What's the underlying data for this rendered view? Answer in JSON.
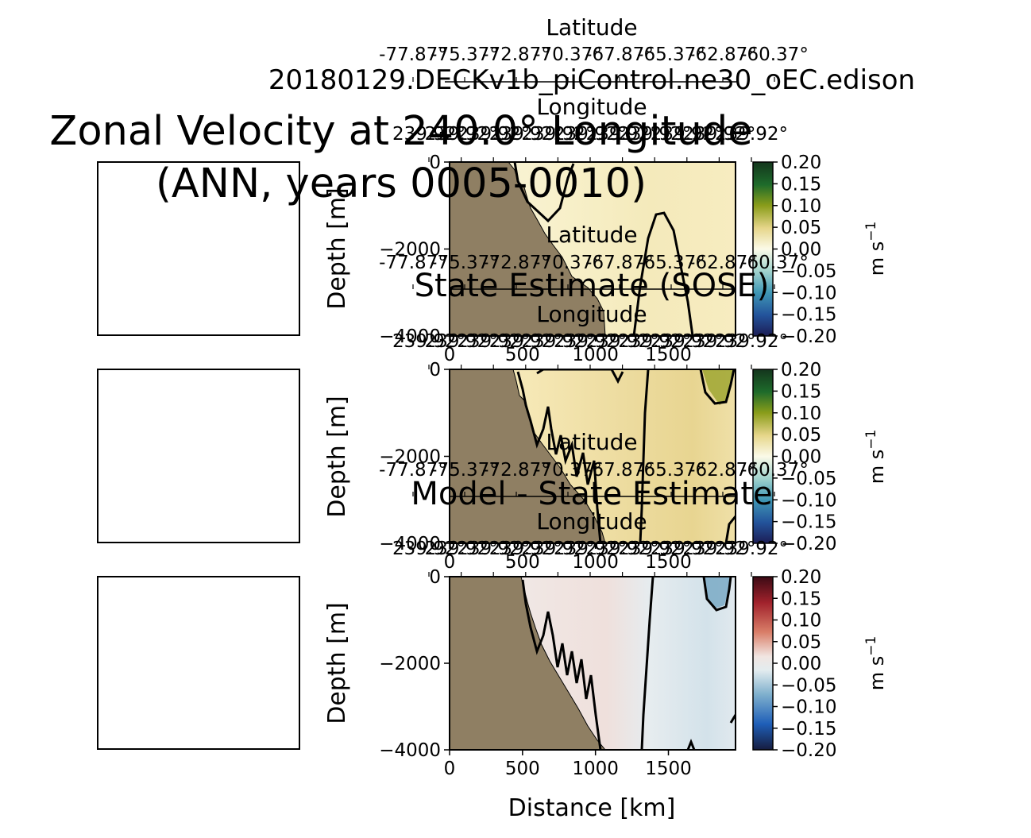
{
  "figure": {
    "title_line1": "Zonal Velocity at 240.0° Longitude",
    "title_line2": "(ANN, years 0005-0010)",
    "xlabel": "Distance [km]",
    "ylabel": "Depth [m]",
    "colorbar_label": "m s",
    "colorbar_label_exp": "−1"
  },
  "colors": {
    "land": "#8f7f63",
    "contour": "#000000",
    "frame": "#000000"
  },
  "chart_data": [
    {
      "type": "heatmap",
      "title": "20180129.DECKv1b_piControl.ne30_oEC.edison",
      "top_axis_latitude_label": "Latitude",
      "top_axis_longitude_label": "Longitude",
      "latitude_ticks": [
        "-77.87°",
        "-75.37°",
        "-72.87°",
        "-70.37°",
        "-67.87°",
        "-65.37°",
        "-62.87°",
        "-60.37°"
      ],
      "longitude_ticks": [
        "239.92°",
        "239.92°",
        "239.92°",
        "239.92°",
        "239.92°",
        "239.92°",
        "239.92°",
        "239.92°",
        "239.92°",
        "239.92°",
        "239.92°"
      ],
      "x_ticks": [
        0,
        500,
        1000,
        1500
      ],
      "y_ticks": [
        "0",
        "−2000",
        "−4000"
      ],
      "xlim": [
        0,
        1960
      ],
      "ylim": [
        -4000,
        0
      ],
      "colormap": "diverging green-yellow-blue",
      "colorbar_ticks": [
        "0.20",
        "0.15",
        "0.10",
        "0.05",
        "0.00",
        "−0.05",
        "−0.10",
        "−0.15",
        "−0.20"
      ],
      "clim": [
        -0.2,
        0.2
      ]
    },
    {
      "type": "heatmap",
      "title": "State Estimate (SOSE)",
      "top_axis_latitude_label": "Latitude",
      "top_axis_longitude_label": "Longitude",
      "latitude_ticks": [
        "-77.87°",
        "-75.37°",
        "-72.87°",
        "-70.37°",
        "-67.87°",
        "-65.37°",
        "-62.87°",
        "-60.37°"
      ],
      "longitude_ticks": [
        "239.92°",
        "239.92°",
        "239.92°",
        "239.92°",
        "239.92°",
        "239.92°",
        "239.92°",
        "239.92°",
        "239.92°",
        "239.92°",
        "239.92°"
      ],
      "x_ticks": [
        0,
        500,
        1000,
        1500
      ],
      "y_ticks": [
        "0",
        "−2000",
        "−4000"
      ],
      "xlim": [
        0,
        1960
      ],
      "ylim": [
        -4000,
        0
      ],
      "colormap": "diverging green-yellow-blue",
      "colorbar_ticks": [
        "0.20",
        "0.15",
        "0.10",
        "0.05",
        "0.00",
        "−0.05",
        "−0.10",
        "−0.15",
        "−0.20"
      ],
      "clim": [
        -0.2,
        0.2
      ]
    },
    {
      "type": "heatmap",
      "title": "Model - State Estimate",
      "x_ticks": [
        0,
        500,
        1000,
        1500
      ],
      "y_ticks": [
        "0",
        "−2000",
        "−4000"
      ],
      "xlim": [
        0,
        1960
      ],
      "ylim": [
        -4000,
        0
      ],
      "colormap": "diverging red-white-blue",
      "colorbar_ticks": [
        "0.20",
        "0.15",
        "0.10",
        "0.05",
        "0.00",
        "−0.05",
        "−0.10",
        "−0.15",
        "−0.20"
      ],
      "clim": [
        -0.2,
        0.2
      ]
    }
  ]
}
